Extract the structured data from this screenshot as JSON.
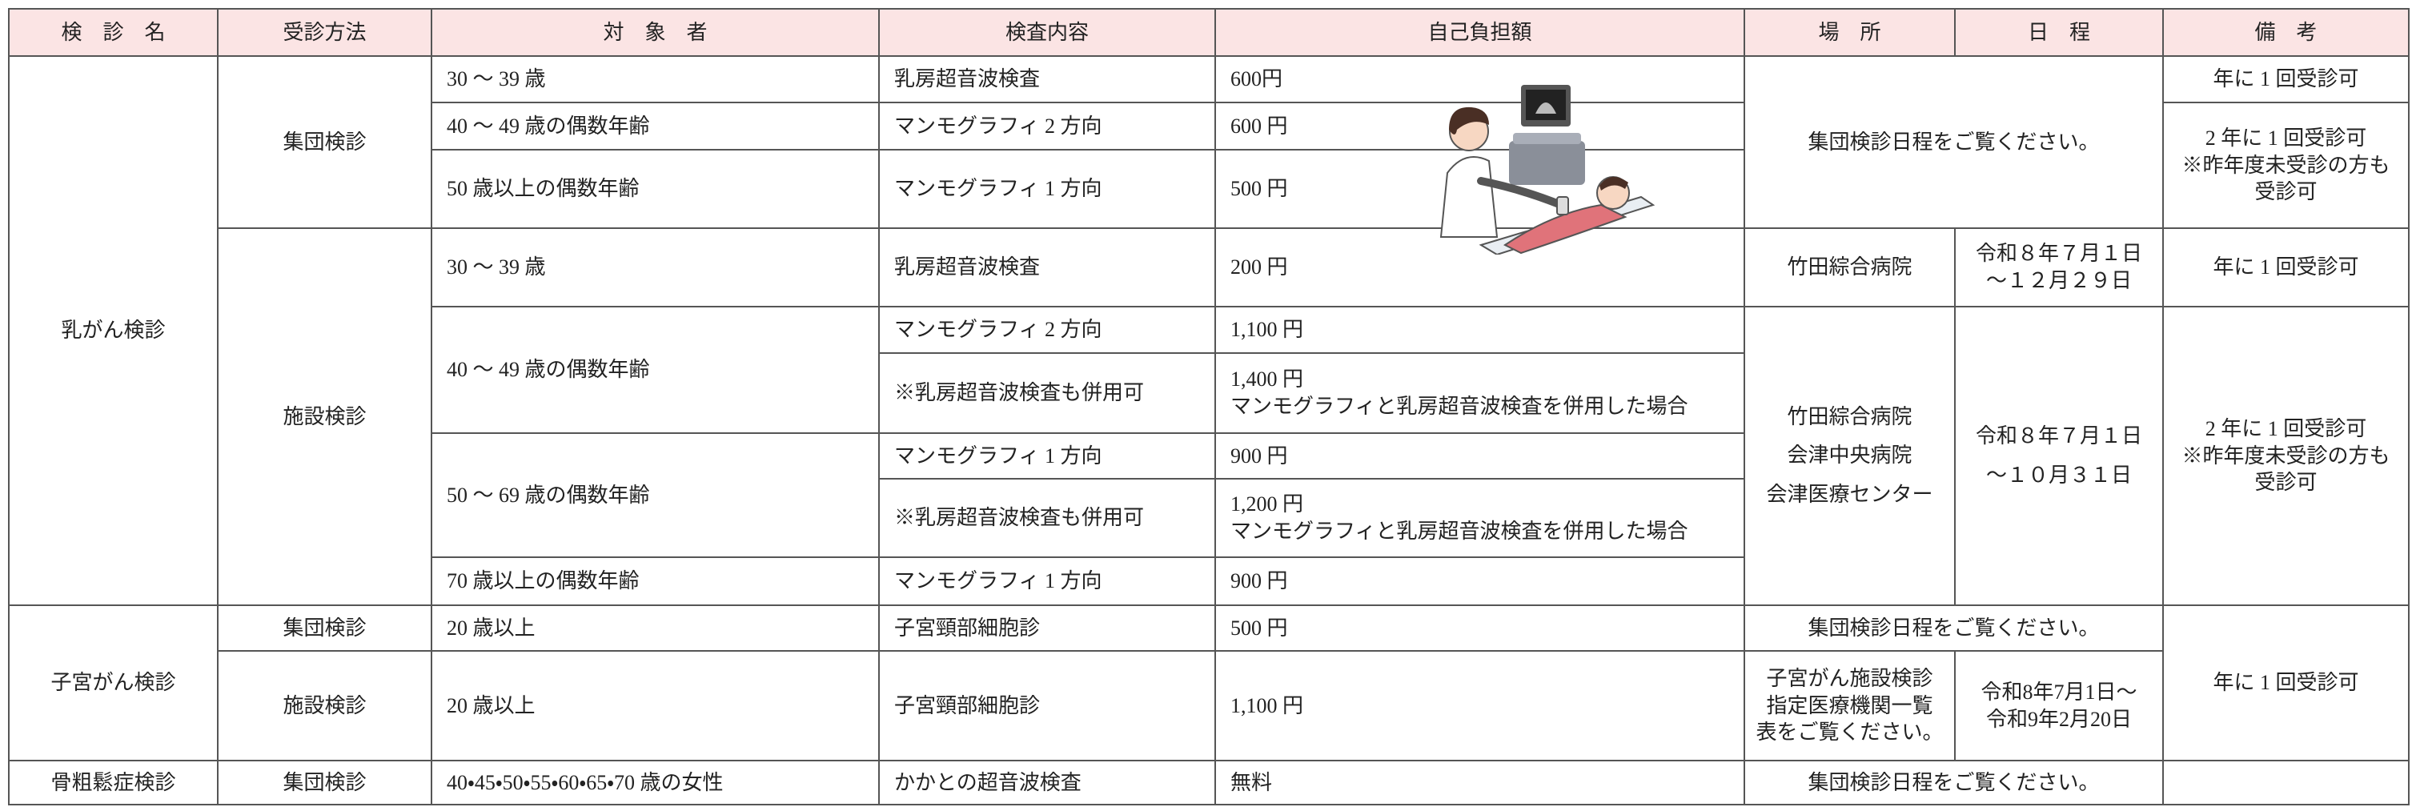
{
  "header": [
    "検　診　名",
    "受診方法",
    "対　象　者",
    "検査内容",
    "自己負担額",
    "場　所",
    "日　程",
    "備　考"
  ],
  "rows": [
    [
      "乳がん検診",
      "集団検診",
      "30 ～ 39 歳",
      "乳房超音波検査",
      "600円",
      "集団検診日程をご覧ください。",
      "年に 1 回受診可"
    ],
    [
      "40 ～ 49 歳の偶数年齢",
      "マンモグラフィ 2 方向",
      "600 円",
      [
        "2 年に 1 回受診可",
        "※昨年度未受診の方も",
        "受診可"
      ]
    ],
    [
      "50 歳以上の偶数年齢",
      "マンモグラフィ 1 方向",
      "500 円"
    ],
    [
      "施設検診",
      "30 ～ 39 歳",
      "乳房超音波検査",
      "200 円",
      "竹田綜合病院",
      [
        "令和８年７月１日",
        "～１２月２９日"
      ],
      "年に 1 回受診可"
    ],
    [
      "40 ～ 49 歳の偶数年齢",
      "マンモグラフィ 2 方向",
      "1,100 円",
      [
        "竹田綜合病院",
        "会津中央病院",
        "会津医療センター"
      ],
      [
        "令和８年７月１日",
        "～１０月３１日"
      ],
      [
        "2 年に 1 回受診可",
        "※昨年度未受診の方も",
        "受診可"
      ]
    ],
    [
      "※乳房超音波検査も併用可",
      [
        "1,400 円",
        "マンモグラフィと乳房超音波検査を併用した場合"
      ]
    ],
    [
      "50 ～ 69 歳の偶数年齢",
      "マンモグラフィ 1 方向",
      "900 円"
    ],
    [
      "※乳房超音波検査も併用可",
      [
        "1,200 円",
        "マンモグラフィと乳房超音波検査を併用した場合"
      ]
    ],
    [
      "70 歳以上の偶数年齢",
      "マンモグラフィ 1 方向",
      "900 円"
    ],
    [
      "子宮がん検診",
      "集団検診",
      "20 歳以上",
      "子宮頸部細胞診",
      "500 円",
      "集団検診日程をご覧ください。",
      "年に 1 回受診可"
    ],
    [
      "施設検診",
      "20 歳以上",
      "子宮頸部細胞診",
      "1,100 円",
      [
        "子宮がん施設検診",
        "指定医療機関一覧",
        "表をご覧ください。"
      ],
      [
        "令和8年7月1日～",
        "令和9年2月20日"
      ]
    ],
    [
      "骨粗鬆症検診",
      "集団検診",
      "40・45・50・55・60・65・70 歳の女性",
      "かかとの超音波検査",
      "無料",
      "集団検診日程をご覧ください。"
    ]
  ]
}
